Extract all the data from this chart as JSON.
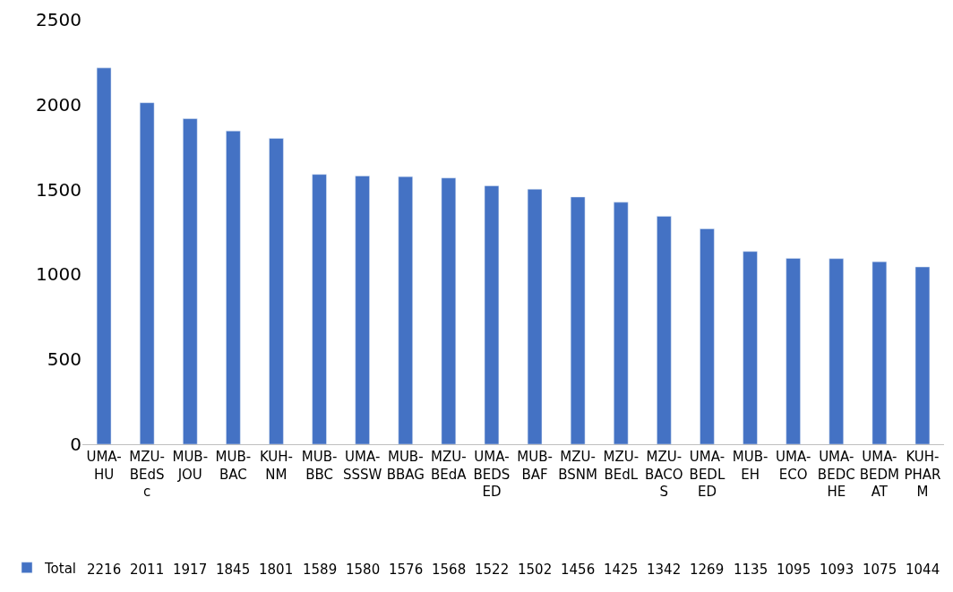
{
  "chart_data": {
    "type": "bar",
    "categories": [
      "UMA-HU",
      "MZU-BEdSc",
      "MUB-JOU",
      "MUB-BAC",
      "KUH-NM",
      "MUB-BBC",
      "UMA-SSSW",
      "MUB-BBAG",
      "MZU-BEdA",
      "UMA-BEDSED",
      "MUB-BAF",
      "MZU-BSNM",
      "MZU-BEdL",
      "MZU-BACOS",
      "UMA-BEDLED",
      "MUB-EH",
      "UMA-ECO",
      "UMA-BEDCHE",
      "UMA-BEDMAT",
      "KUH-PHARM"
    ],
    "series": [
      {
        "name": "Total",
        "color": "#4472c4",
        "values": [
          2216,
          2011,
          1917,
          1845,
          1801,
          1589,
          1580,
          1576,
          1568,
          1522,
          1502,
          1456,
          1425,
          1342,
          1269,
          1135,
          1095,
          1093,
          1075,
          1044
        ]
      }
    ],
    "ylim": [
      0,
      2500
    ],
    "yticks": [
      0,
      500,
      1000,
      1500,
      2000,
      2500
    ],
    "grid": false,
    "legend": "bottom left",
    "data_labels": true
  }
}
